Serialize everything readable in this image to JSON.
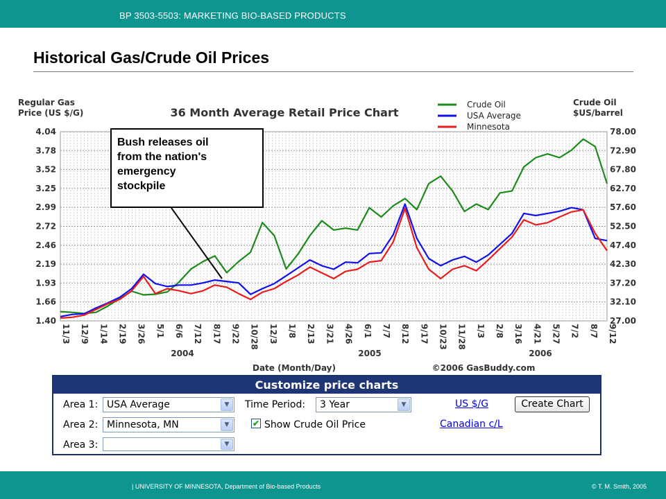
{
  "header": {
    "course": "BP 3503-5503: MARKETING BIO-BASED PRODUCTS"
  },
  "slide": {
    "title": "Historical Gas/Crude Oil Prices"
  },
  "callout": {
    "text": "Bush releases oil\nfrom the nation's\nemergency\nstockpile"
  },
  "chart_data": {
    "type": "line",
    "title": "36 Month Average Retail Price Chart",
    "ylabel_left": "Regular Gas\nPrice (US $/G)",
    "ylabel_right": "Crude Oil\n$US/barrel",
    "xlabel": "Date (Month/Day)",
    "credit": "©2006 GasBuddy.com",
    "years": [
      "2004",
      "2005",
      "2006"
    ],
    "x_ticks": [
      "11/3",
      "12/9",
      "1/14",
      "2/19",
      "3/26",
      "5/1",
      "6/6",
      "7/12",
      "8/17",
      "9/22",
      "10/28",
      "12/3",
      "1/8",
      "2/13",
      "3/21",
      "4/26",
      "6/1",
      "7/7",
      "8/12",
      "9/17",
      "10/23",
      "11/28",
      "1/3",
      "2/8",
      "3/16",
      "4/21",
      "5/27",
      "7/2",
      "8/7",
      "9/12"
    ],
    "ylim_left": [
      1.4,
      4.04
    ],
    "y_ticks_left": [
      "4.04",
      "3.78",
      "3.52",
      "3.25",
      "2.99",
      "2.72",
      "2.46",
      "2.19",
      "1.93",
      "1.66",
      "1.40"
    ],
    "ylim_right": [
      27.0,
      78.0
    ],
    "y_ticks_right": [
      "78.00",
      "72.90",
      "67.80",
      "62.70",
      "57.60",
      "52.50",
      "47.40",
      "42.30",
      "37.20",
      "32.10",
      "27.00"
    ],
    "grid": true,
    "legend_position": "top-right",
    "series": [
      {
        "name": "Crude Oil",
        "color": "#1a8a1a",
        "axis": "right",
        "values": [
          29.5,
          29.3,
          29.0,
          29.3,
          31.0,
          33.0,
          35.0,
          34.0,
          34.2,
          34.8,
          37.5,
          41.0,
          43.0,
          44.5,
          40.0,
          43.0,
          45.5,
          53.5,
          50.0,
          41.0,
          45.0,
          50.0,
          54.0,
          51.5,
          52.0,
          51.5,
          57.5,
          55.0,
          58.0,
          60.0,
          57.0,
          64.0,
          66.0,
          62.0,
          56.5,
          58.5,
          57.0,
          61.5,
          62.0,
          68.5,
          71.0,
          72.0,
          71.0,
          73.0,
          76.0,
          74.0,
          64.0
        ]
      },
      {
        "name": "USA Average",
        "color": "#1010ee",
        "axis": "left",
        "values": [
          1.46,
          1.49,
          1.5,
          1.58,
          1.65,
          1.73,
          1.85,
          2.05,
          1.92,
          1.88,
          1.9,
          1.9,
          1.93,
          1.97,
          1.95,
          1.93,
          1.77,
          1.85,
          1.92,
          2.03,
          2.14,
          2.25,
          2.17,
          2.12,
          2.22,
          2.21,
          2.34,
          2.35,
          2.6,
          3.03,
          2.55,
          2.27,
          2.17,
          2.25,
          2.3,
          2.22,
          2.32,
          2.47,
          2.62,
          2.9,
          2.87,
          2.9,
          2.93,
          2.98,
          2.95,
          2.55,
          2.52
        ]
      },
      {
        "name": "Minnesota",
        "color": "#e81c1c",
        "axis": "left",
        "values": [
          1.44,
          1.45,
          1.48,
          1.56,
          1.64,
          1.7,
          1.82,
          2.02,
          1.78,
          1.85,
          1.82,
          1.78,
          1.82,
          1.9,
          1.87,
          1.78,
          1.7,
          1.8,
          1.85,
          1.95,
          2.04,
          2.15,
          2.07,
          1.99,
          2.09,
          2.12,
          2.22,
          2.24,
          2.5,
          2.97,
          2.42,
          2.12,
          1.99,
          2.12,
          2.17,
          2.1,
          2.25,
          2.41,
          2.57,
          2.81,
          2.74,
          2.77,
          2.85,
          2.92,
          2.95,
          2.62,
          2.38
        ]
      }
    ]
  },
  "panel": {
    "title": "Customize price charts",
    "area1_label": "Area 1:",
    "area1_value": "USA Average",
    "area2_label": "Area 2:",
    "area2_value": "Minnesota, MN",
    "area3_label": "Area 3:",
    "area3_value": "",
    "time_label": "Time Period:",
    "time_value": "3 Year",
    "show_crude_label": "Show Crude Oil Price",
    "show_crude_checked": true,
    "link_usd": "US $/G",
    "link_cad": "Canadian c/L",
    "create_button": "Create Chart"
  },
  "footer": {
    "university": "|  UNIVERSITY OF MINNESOTA, Department of Bio-based Products",
    "copyright": "© T. M. Smith, 2005"
  }
}
